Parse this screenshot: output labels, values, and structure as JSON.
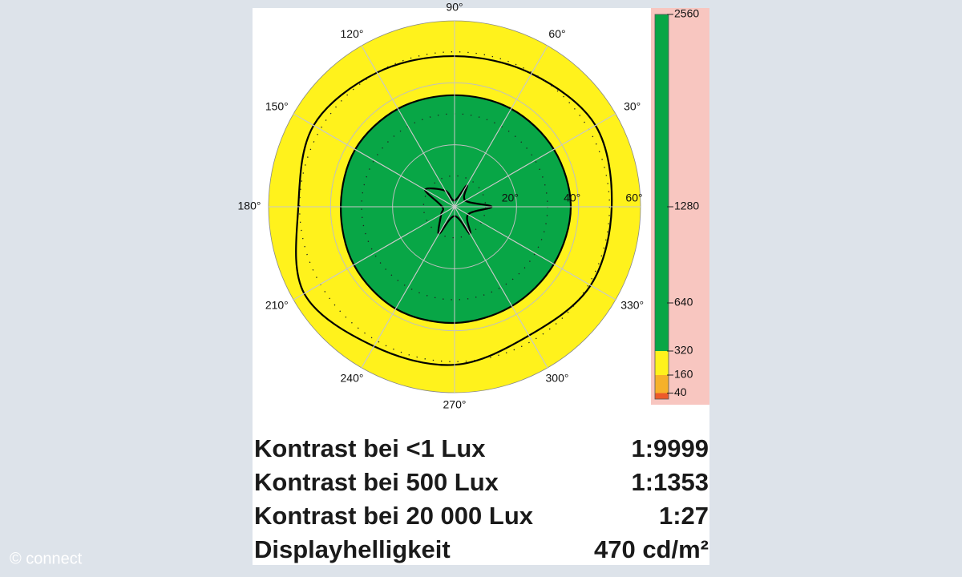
{
  "chart_data": {
    "type": "polar-contour",
    "theta": [
      0,
      30,
      60,
      90,
      120,
      150,
      180,
      210,
      240,
      270,
      300,
      330
    ],
    "rlim": [
      0,
      60
    ],
    "rticks": [
      {
        "value": 20,
        "label": "20°"
      },
      {
        "value": 40,
        "label": "40°"
      },
      {
        "value": 60,
        "label": "60°"
      }
    ],
    "rminor": [
      10,
      30,
      50
    ],
    "thetaticks": [
      {
        "value": 30,
        "label": "30°"
      },
      {
        "value": 60,
        "label": "60°"
      },
      {
        "value": 90,
        "label": "90°"
      },
      {
        "value": 120,
        "label": "120°"
      },
      {
        "value": 150,
        "label": "150°"
      },
      {
        "value": 180,
        "label": "180°"
      },
      {
        "value": 210,
        "label": "210°"
      },
      {
        "value": 240,
        "label": "240°"
      },
      {
        "value": 270,
        "label": "270°"
      },
      {
        "value": 300,
        "label": "300°"
      },
      {
        "value": 330,
        "label": "330°"
      }
    ],
    "contours": [
      {
        "level": 320,
        "values": [
          50.7,
          52.5,
          49.6,
          48.6,
          50,
          52.5,
          50.4,
          56,
          52,
          51,
          48,
          50.7
        ]
      },
      {
        "level": 1280,
        "values": [
          37.5,
          37,
          36.5,
          36,
          36.5,
          37,
          36.7,
          37.5,
          38,
          37.5,
          37,
          37
        ]
      },
      {
        "level": 2560,
        "values": [
          12,
          4,
          8,
          2,
          6,
          11,
          4,
          5,
          10,
          3,
          10,
          5
        ]
      }
    ],
    "clim": [
      0,
      2560
    ],
    "cticks": [
      2560,
      1280,
      640,
      320,
      160,
      40
    ],
    "bands": [
      {
        "from": 0,
        "to": 40,
        "color": "#ec5a2a"
      },
      {
        "from": 40,
        "to": 160,
        "color": "#f6b12a"
      },
      {
        "from": 160,
        "to": 320,
        "color": "#fff21c"
      },
      {
        "from": 320,
        "to": 2560,
        "color": "#08a646"
      }
    ],
    "rows": [
      [
        "Kontrast bei <1 Lux",
        "1:9999"
      ],
      [
        "Kontrast bei 500 Lux",
        "1:1353"
      ],
      [
        "Kontrast bei 20 000 Lux",
        "1:27"
      ],
      [
        "Displayhelligkeit",
        "470 cd/m²"
      ]
    ],
    "credit": "© connect"
  }
}
